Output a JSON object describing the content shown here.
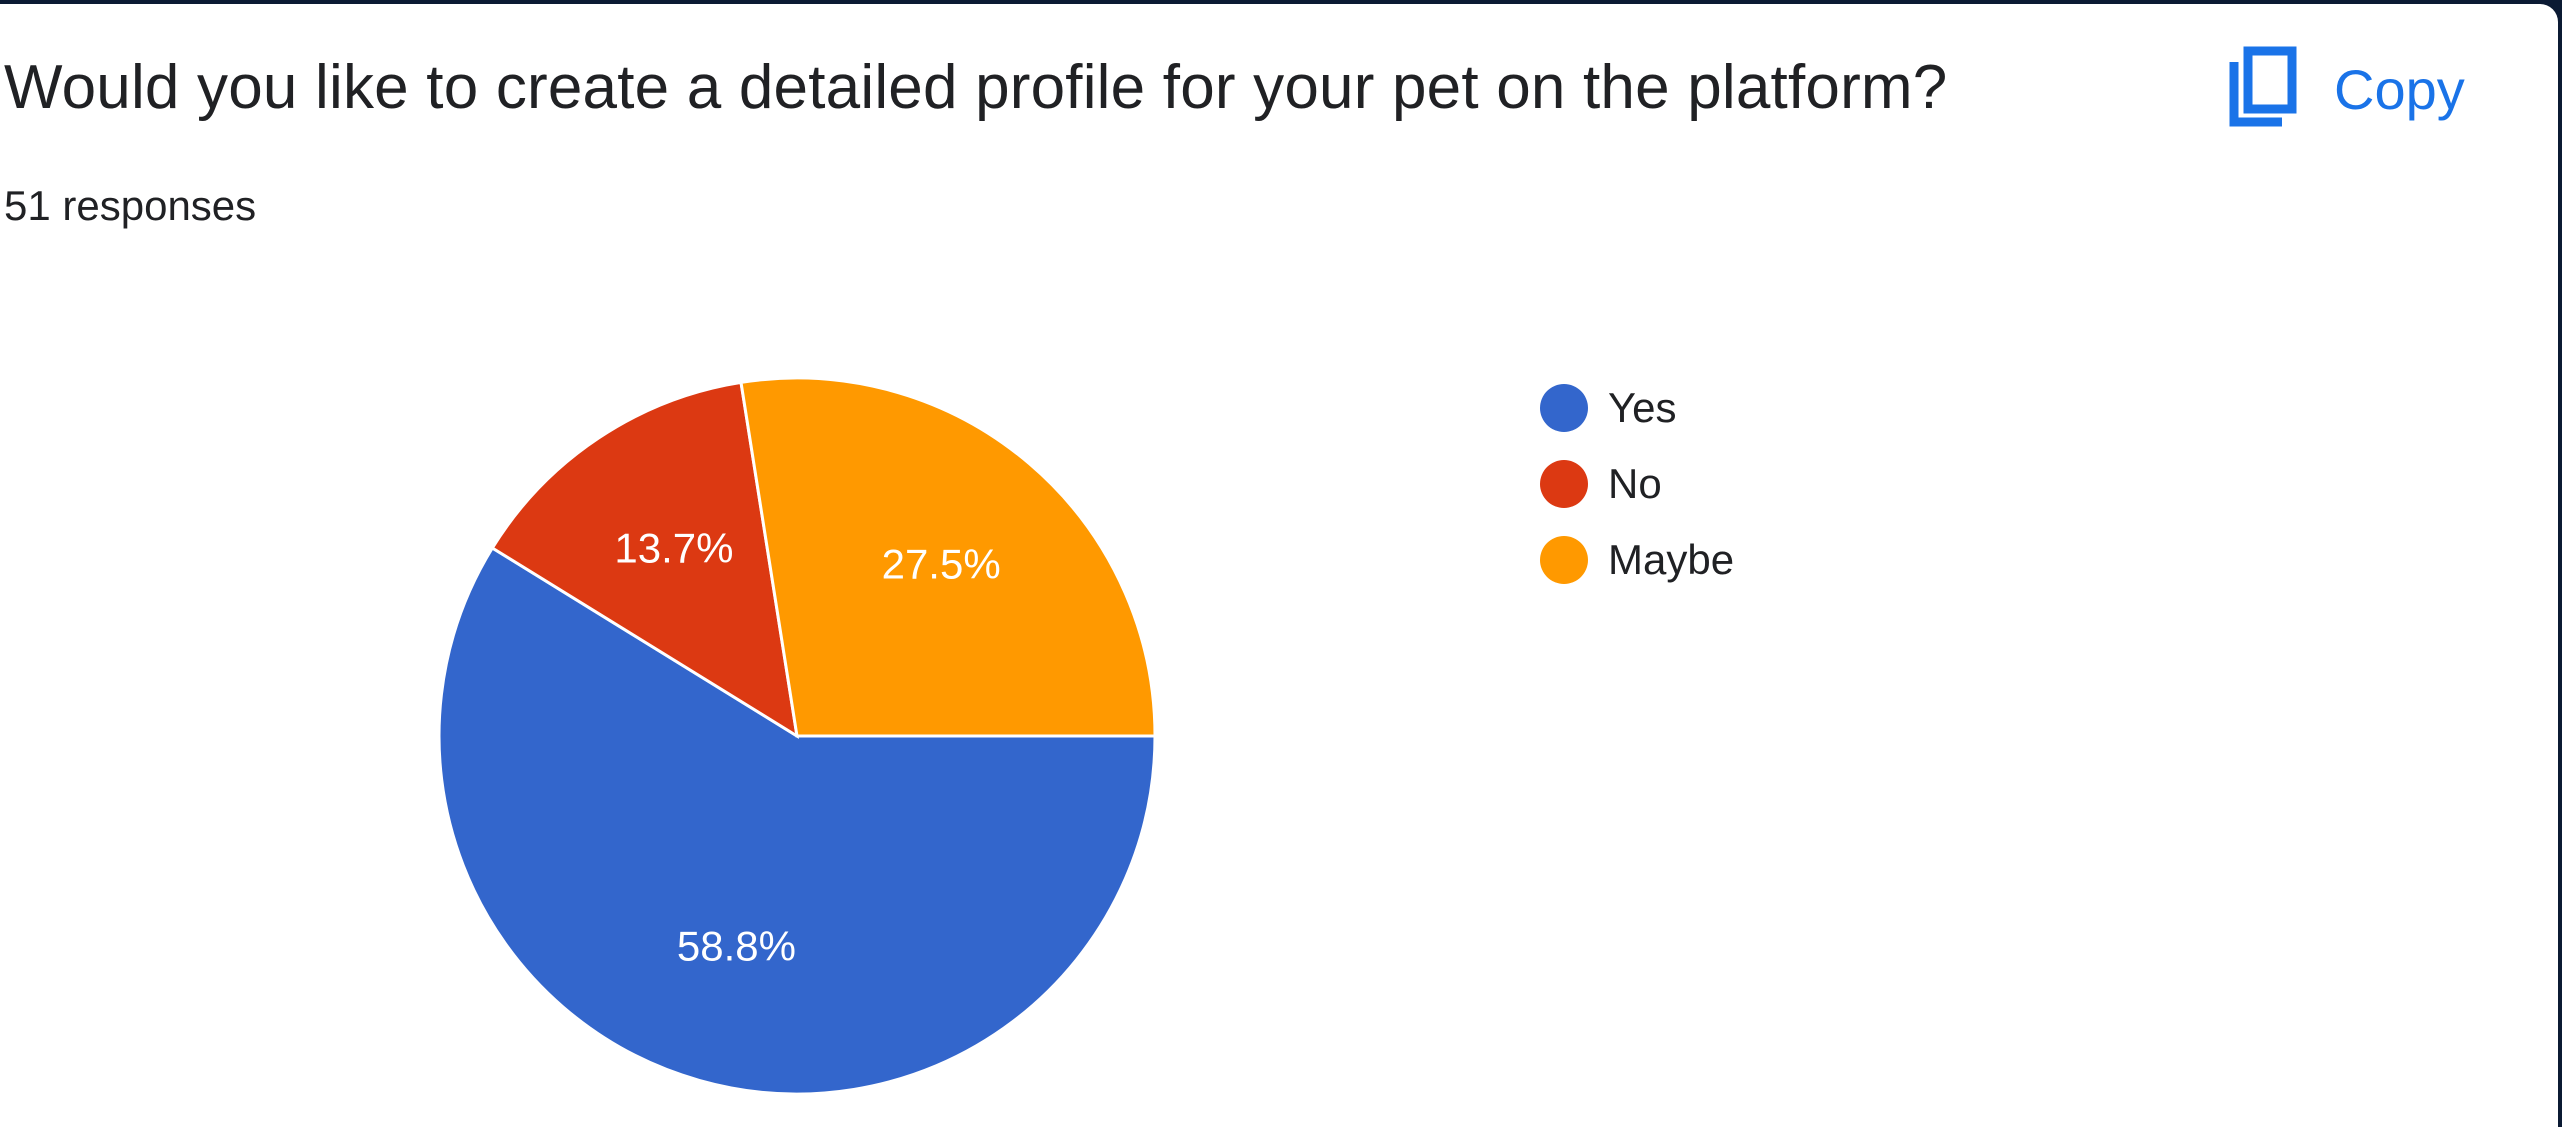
{
  "question": "Would you like to create a detailed profile for your pet on the platform?",
  "responses_label": "51 responses",
  "copy_button": {
    "label": "Copy",
    "icon": "copy-icon",
    "color": "#1a73e8"
  },
  "chart_data": {
    "type": "pie",
    "categories": [
      "Yes",
      "No",
      "Maybe"
    ],
    "values": [
      58.8,
      13.7,
      27.5
    ],
    "labels": [
      "58.8%",
      "13.7%",
      "27.5%"
    ],
    "colors": [
      "#3366cc",
      "#dc3912",
      "#ff9900"
    ],
    "legend_position": "right",
    "start_angle": "3 o'clock, counterclockwise order Yes, No, Maybe"
  },
  "legend": [
    {
      "label": "Yes",
      "color": "#3366cc"
    },
    {
      "label": "No",
      "color": "#dc3912"
    },
    {
      "label": "Maybe",
      "color": "#ff9900"
    }
  ]
}
